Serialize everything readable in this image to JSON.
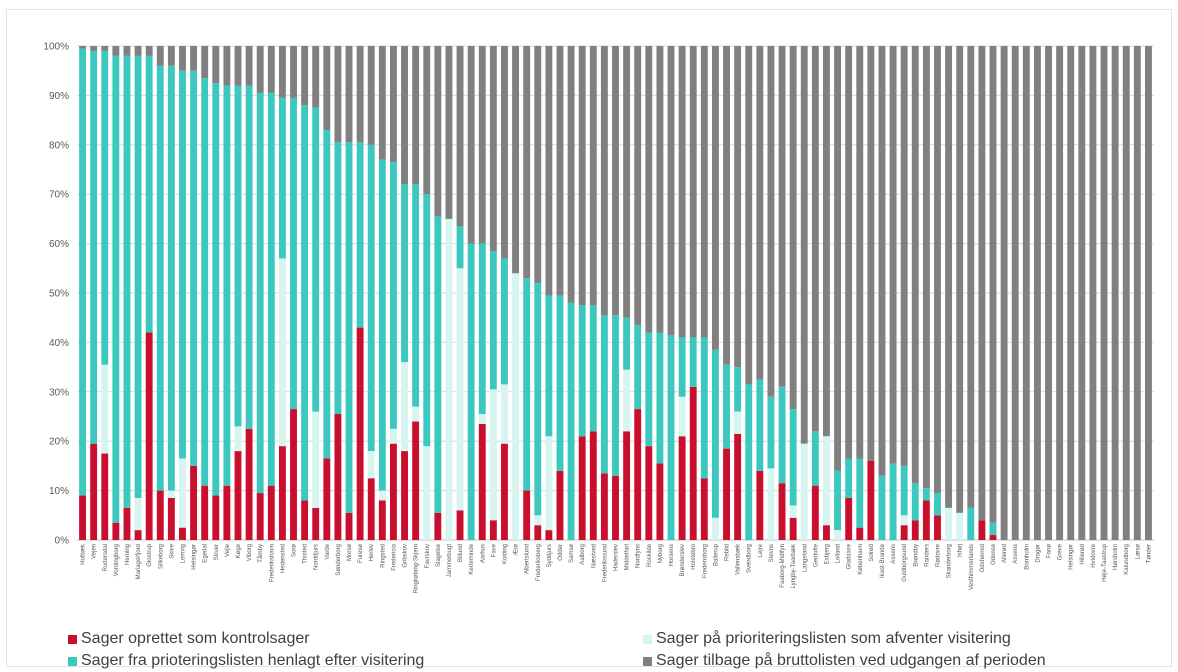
{
  "chart_data": {
    "type": "bar",
    "stacked": true,
    "normalized_percent": true,
    "yticks": [
      "0%",
      "10%",
      "20%",
      "30%",
      "40%",
      "50%",
      "60%",
      "70%",
      "80%",
      "90%",
      "100%"
    ],
    "ylim": [
      0,
      100
    ],
    "grid": true,
    "legend_position": "bottom",
    "categories": [
      "Holbæk",
      "Vejen",
      "Rudersdal",
      "Vordingborg",
      "Herning",
      "Mariagerfjord",
      "Glostrup",
      "Silkeborg",
      "Skive",
      "Lemvig",
      "Helsingør",
      "Egedal",
      "Struer",
      "Vejle",
      "Køge",
      "Viborg",
      "Tårnby",
      "Frederikshavn",
      "Hedensted",
      "Sorø",
      "Thisted",
      "Norddjurs",
      "Varde",
      "Sønderborg",
      "Morsø",
      "Furesø",
      "Herlev",
      "Ringsted",
      "Fredericia",
      "Gribskov",
      "Ringkøbing-Skjern",
      "Favrskov",
      "Slagelse",
      "Jammerbugt",
      "Billund",
      "Kerteminde",
      "Aarhus",
      "Faxe",
      "Kolding",
      "Ærø",
      "Albertslund",
      "Frederiksberg",
      "Syddjurs",
      "Odder",
      "Samsø",
      "Aalborg",
      "Næstved",
      "Frederikssund",
      "Haderslev",
      "Middelfart",
      "Nordfyns",
      "Roskilde",
      "Nyborg",
      "Horsens",
      "Brønderslev",
      "Holstebro",
      "Fredensborg",
      "Ballerup",
      "Rebild",
      "Vallensbæk",
      "Svendborg",
      "Lejre",
      "Stevns",
      "Faaborg-Midtfyn",
      "Lyngby-Taarbæk",
      "Langeland",
      "Gentofte",
      "Esbjerg",
      "Lolland",
      "Gladsaxe",
      "København",
      "Solrød",
      "Ikast-Brande",
      "Assens",
      "Guldborgsund",
      "Brøndby",
      "Randers",
      "Rødovre",
      "Skanderborg",
      "Ishøj",
      "Vesthimmerlands",
      "Odsherred",
      "Odense",
      "Allerød",
      "Assens",
      "Bornholm",
      "Dragør",
      "Fanø",
      "Greve",
      "Helsingør",
      "Hillerød",
      "Hvidovre",
      "Høje-Taastrup",
      "Hørsholm",
      "Kalundborg",
      "Læsø",
      "Tønder"
    ],
    "series": [
      {
        "name": "Sager oprettet som kontrolsager",
        "color": "#c8102e",
        "values": [
          9,
          19.5,
          17.5,
          3.5,
          6.5,
          2,
          42,
          10,
          8.5,
          2.5,
          15,
          11,
          9,
          11,
          18,
          22.5,
          9.5,
          11,
          19,
          26.5,
          8,
          6.5,
          16.5,
          25.5,
          5.5,
          43,
          12.5,
          8,
          19.5,
          18,
          24,
          0,
          5.5,
          0,
          6,
          0,
          23.5,
          4,
          19.5,
          0,
          10,
          3,
          2,
          14,
          0,
          21,
          22,
          13.5,
          13,
          22,
          26.5,
          19,
          15.5,
          0,
          21,
          31,
          12.5,
          0,
          18.5,
          21.5,
          0,
          14,
          0,
          11.5,
          4.5,
          0,
          11,
          3,
          0,
          8.5,
          2.5,
          16,
          0,
          0,
          3,
          4,
          8,
          5,
          0,
          0,
          0,
          4,
          1,
          0,
          0,
          0,
          0,
          0,
          0,
          0,
          0,
          0,
          0,
          0,
          0,
          0,
          0
        ]
      },
      {
        "name": "Sager på prioriteringslisten som afventer visitering",
        "color": "#d6f4f0",
        "values": [
          0,
          0,
          18,
          0,
          0,
          6.5,
          0,
          0,
          1.5,
          14,
          0,
          0,
          0,
          0,
          5,
          0,
          0,
          0,
          38,
          0,
          0,
          19.5,
          0,
          0,
          0,
          0,
          5.5,
          2,
          3,
          18,
          3,
          19,
          0,
          65,
          49,
          0,
          2,
          26.5,
          12,
          54,
          0,
          2,
          19,
          0,
          0,
          0,
          0,
          0,
          0,
          12.5,
          0,
          0,
          0,
          0,
          8,
          0,
          0,
          4.5,
          0,
          4.5,
          0,
          0,
          14.5,
          0,
          2.5,
          19.5,
          0,
          18,
          2,
          0,
          0,
          0,
          0,
          0,
          2,
          0,
          0,
          0,
          6.5,
          5.5,
          0,
          0,
          0,
          0,
          0,
          0,
          0,
          0,
          0,
          0,
          0,
          0,
          0,
          0,
          0,
          0,
          0
        ]
      },
      {
        "name": "Sager fra prioteringslisten henlagt efter visitering",
        "color": "#3cc8be",
        "values": [
          90.5,
          79.5,
          63.5,
          94.5,
          91.5,
          89.5,
          56,
          86,
          86,
          78.5,
          80,
          82.5,
          83.5,
          81,
          69,
          69.5,
          81,
          79.5,
          32.5,
          63,
          80,
          61.5,
          66.5,
          55,
          75,
          37.5,
          62,
          67,
          54,
          36,
          45,
          51,
          60,
          0,
          8.5,
          60,
          34.5,
          28,
          25.5,
          0,
          43,
          47,
          28.5,
          35.5,
          48,
          26.5,
          25.5,
          32,
          32.5,
          10.5,
          17,
          23,
          26.5,
          41.5,
          12,
          10,
          28.5,
          34,
          17,
          9,
          31.5,
          18.5,
          14.5,
          19.5,
          19.5,
          0,
          11,
          0,
          12,
          8,
          14,
          0,
          13,
          15.5,
          10,
          7.5,
          2.5,
          4.5,
          0,
          0,
          6.5,
          0,
          2.5,
          0,
          0,
          0,
          0,
          0,
          0,
          0,
          0,
          0,
          0,
          0,
          0,
          0,
          0
        ]
      },
      {
        "name": "Sager tilbage på bruttolisten ved udgangen af perioden",
        "color": "#808080",
        "values": [
          0.5,
          1,
          1,
          2,
          2,
          2,
          2,
          4,
          4,
          5,
          5,
          6.5,
          7.5,
          8,
          8,
          8,
          9.5,
          9.5,
          10.5,
          10.5,
          12,
          12.5,
          17,
          19.5,
          19.5,
          19.5,
          20,
          23,
          23.5,
          28,
          28,
          30,
          34.5,
          35,
          36.5,
          40,
          40,
          41.5,
          43,
          46,
          47,
          48,
          50.5,
          50.5,
          52,
          52.5,
          52.5,
          54.5,
          54.5,
          55,
          56.5,
          58,
          58,
          58.5,
          59,
          59,
          59,
          61.5,
          64.5,
          65,
          68.5,
          67.5,
          71,
          69,
          73.5,
          80.5,
          78,
          79,
          86,
          83.5,
          83.5,
          84,
          87,
          84.5,
          85,
          88.5,
          89.5,
          90.5,
          93.5,
          94.5,
          93.5,
          96,
          96.5,
          100,
          100,
          100,
          100,
          100,
          100,
          100,
          100,
          100,
          100,
          100,
          100,
          100,
          100
        ]
      }
    ]
  },
  "legend": [
    {
      "label": "Sager oprettet som kontrolsager",
      "color": "#c8102e"
    },
    {
      "label": "Sager på prioriteringslisten som afventer visitering",
      "color": "#d6f4f0"
    },
    {
      "label": "Sager fra prioteringslisten henlagt efter visitering",
      "color": "#3cc8be"
    },
    {
      "label": "Sager tilbage på bruttolisten ved udgangen af perioden",
      "color": "#808080"
    }
  ]
}
